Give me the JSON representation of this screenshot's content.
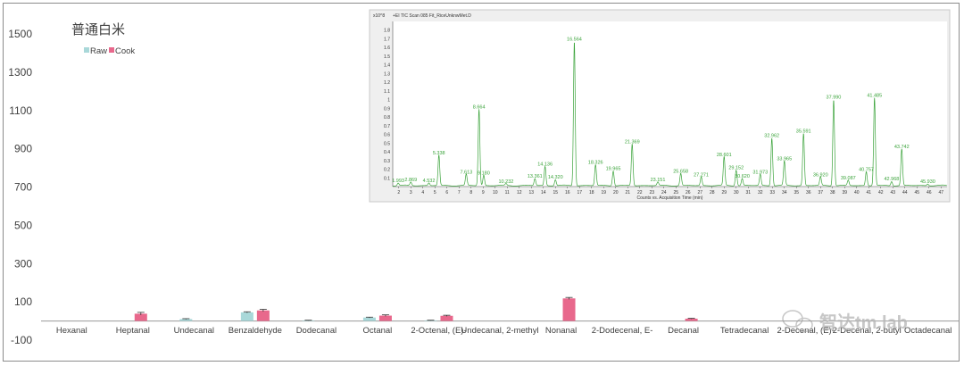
{
  "chart_data": [
    {
      "type": "bar",
      "title": "普通白米",
      "categories": [
        "Hexanal",
        "Heptanal",
        "Undecanal",
        "Benzaldehyde",
        "Dodecanal",
        "Octanal",
        "2-Octenal, (E)-",
        "Undecanal, 2-methyl",
        "Nonanal",
        "2-Dodecenal, E-",
        "Decanal",
        "Tetradecanal",
        "2-Decenal, (E)-",
        "2-Decenal, 2-butyl",
        "Octadecanal"
      ],
      "series": [
        {
          "name": "Raw",
          "color": "#a9d8d9",
          "values": [
            0,
            0,
            10,
            45,
            3,
            18,
            3,
            0,
            0,
            0,
            0,
            0,
            0,
            0,
            0
          ],
          "errors": [
            0,
            0,
            2,
            3,
            1,
            2,
            1,
            0,
            0,
            0,
            0,
            0,
            0,
            0,
            0
          ]
        },
        {
          "name": "Cook",
          "color": "#e8688c",
          "values": [
            0,
            38,
            0,
            55,
            0,
            28,
            27,
            0,
            118,
            0,
            12,
            0,
            0,
            0,
            0
          ],
          "errors": [
            0,
            7,
            0,
            6,
            0,
            4,
            3,
            0,
            5,
            0,
            2,
            0,
            0,
            0,
            0
          ]
        }
      ],
      "ylim": [
        -100,
        1500
      ],
      "yticks": [
        -100,
        100,
        300,
        500,
        700,
        900,
        1100,
        1300,
        1500
      ],
      "legend_position": "top-left",
      "grid": false
    },
    {
      "type": "line",
      "title": "+EI TIC Scan 085 Fit_RiceUnknwMet.D",
      "y_scale_label": "x10^8",
      "xlabel": "Counts vs. Acquisition Time (min)",
      "xlim": [
        1.5,
        47.5
      ],
      "ylim": [
        0,
        1.9
      ],
      "xticks": [
        2,
        3,
        4,
        5,
        6,
        7,
        8,
        9,
        10,
        11,
        12,
        13,
        14,
        15,
        16,
        17,
        18,
        19,
        20,
        21,
        22,
        23,
        24,
        25,
        26,
        27,
        28,
        29,
        30,
        31,
        32,
        33,
        34,
        35,
        36,
        37,
        38,
        39,
        40,
        41,
        42,
        43,
        44,
        45,
        46,
        47
      ],
      "yticks": [
        0.1,
        0.2,
        0.3,
        0.4,
        0.5,
        0.6,
        0.7,
        0.8,
        0.9,
        1,
        1.1,
        1.2,
        1.3,
        1.4,
        1.5,
        1.6,
        1.7,
        1.8
      ],
      "peaks": [
        {
          "t": 1.95,
          "h": 0.03,
          "label": "1.993"
        },
        {
          "t": 3.0,
          "h": 0.04,
          "label": "2.869"
        },
        {
          "t": 4.5,
          "h": 0.03,
          "label": "4.532"
        },
        {
          "t": 5.33,
          "h": 0.35,
          "label": "5.338"
        },
        {
          "t": 7.6,
          "h": 0.13,
          "label": "7.613"
        },
        {
          "t": 8.66,
          "h": 0.88,
          "label": "8.664"
        },
        {
          "t": 9.05,
          "h": 0.12,
          "label": "9.180"
        },
        {
          "t": 10.9,
          "h": 0.02,
          "label": "10.232"
        },
        {
          "t": 13.3,
          "h": 0.08,
          "label": "13.361"
        },
        {
          "t": 14.14,
          "h": 0.22,
          "label": "14.136"
        },
        {
          "t": 15.0,
          "h": 0.07,
          "label": "14.320"
        },
        {
          "t": 16.57,
          "h": 1.66,
          "label": "16.564"
        },
        {
          "t": 18.33,
          "h": 0.24,
          "label": "18.326"
        },
        {
          "t": 19.8,
          "h": 0.17,
          "label": "19.965"
        },
        {
          "t": 21.37,
          "h": 0.48,
          "label": "21.369"
        },
        {
          "t": 23.5,
          "h": 0.04,
          "label": "23.151"
        },
        {
          "t": 25.4,
          "h": 0.14,
          "label": "25.658"
        },
        {
          "t": 27.1,
          "h": 0.1,
          "label": "27.271"
        },
        {
          "t": 29.0,
          "h": 0.33,
          "label": "28.601"
        },
        {
          "t": 30.0,
          "h": 0.18,
          "label": "29.152"
        },
        {
          "t": 30.5,
          "h": 0.08,
          "label": "30.620"
        },
        {
          "t": 32.0,
          "h": 0.13,
          "label": "31.973"
        },
        {
          "t": 32.96,
          "h": 0.55,
          "label": "32.962"
        },
        {
          "t": 34.0,
          "h": 0.28,
          "label": "33.965"
        },
        {
          "t": 35.59,
          "h": 0.6,
          "label": "35.591"
        },
        {
          "t": 37.0,
          "h": 0.1,
          "label": "36.920"
        },
        {
          "t": 38.09,
          "h": 0.99,
          "label": "37.990"
        },
        {
          "t": 39.3,
          "h": 0.06,
          "label": "39.087"
        },
        {
          "t": 40.8,
          "h": 0.16,
          "label": "40.757"
        },
        {
          "t": 41.48,
          "h": 1.01,
          "label": "41.485"
        },
        {
          "t": 42.9,
          "h": 0.05,
          "label": "42.968"
        },
        {
          "t": 43.74,
          "h": 0.42,
          "label": "43.742"
        },
        {
          "t": 45.9,
          "h": 0.02,
          "label": "45.930"
        }
      ]
    }
  ],
  "watermark": {
    "text": "智达tm.lab"
  }
}
